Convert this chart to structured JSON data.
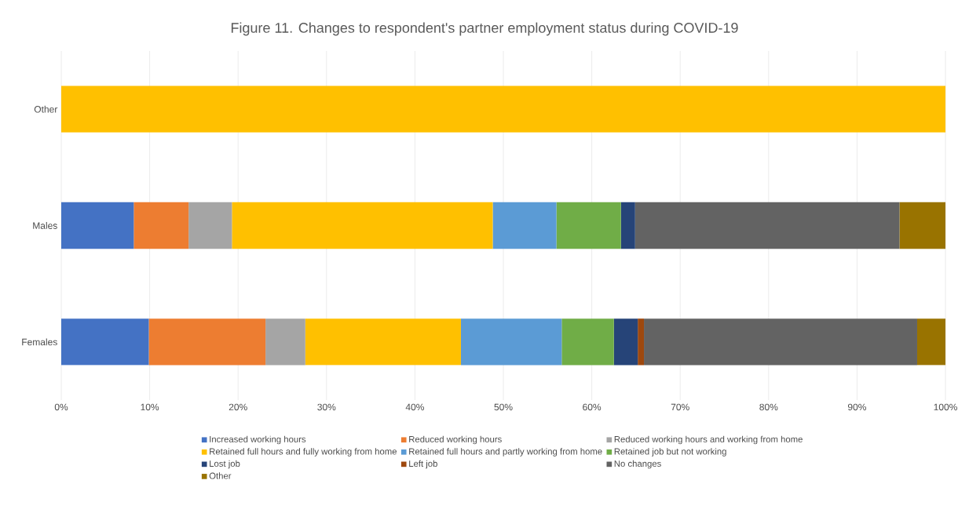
{
  "chart_data": {
    "type": "bar",
    "orientation": "horizontal",
    "stacked": true,
    "title": "Figure 11. Changes to respondent's partner employment status during COVID-19",
    "categories": [
      "Other",
      "Males",
      "Females"
    ],
    "series": [
      {
        "name": "Increased working hours",
        "color": "#4472c4",
        "values": [
          0,
          8.2,
          9.9
        ]
      },
      {
        "name": "Reduced working hours",
        "color": "#ed7d31",
        "values": [
          0,
          6.2,
          13.2
        ]
      },
      {
        "name": "Reduced working hours and working from home",
        "color": "#a5a5a5",
        "values": [
          0,
          4.9,
          4.5
        ]
      },
      {
        "name": "Retained full hours and fully working from home",
        "color": "#ffc000",
        "values": [
          100,
          29.5,
          17.6
        ]
      },
      {
        "name": "Retained full hours and partly working from home",
        "color": "#5b9bd5",
        "values": [
          0,
          7.2,
          11.4
        ]
      },
      {
        "name": "Retained job but not working",
        "color": "#70ad47",
        "values": [
          0,
          7.3,
          5.9
        ]
      },
      {
        "name": "Lost job",
        "color": "#264478",
        "values": [
          0,
          1.6,
          2.7
        ]
      },
      {
        "name": "Left job",
        "color": "#9e480e",
        "values": [
          0,
          0,
          0.7
        ]
      },
      {
        "name": "No changes",
        "color": "#636363",
        "values": [
          0,
          29.9,
          30.9
        ]
      },
      {
        "name": "Other",
        "color": "#997300",
        "values": [
          0,
          5.2,
          3.2
        ]
      }
    ],
    "xlim": [
      0,
      100
    ],
    "xticks": [
      {
        "value": 0,
        "label": "0%"
      },
      {
        "value": 10,
        "label": "10%"
      },
      {
        "value": 20,
        "label": "20%"
      },
      {
        "value": 30,
        "label": "30%"
      },
      {
        "value": 40,
        "label": "40%"
      },
      {
        "value": 50,
        "label": "50%"
      },
      {
        "value": 60,
        "label": "60%"
      },
      {
        "value": 70,
        "label": "70%"
      },
      {
        "value": 80,
        "label": "80%"
      },
      {
        "value": 90,
        "label": "90%"
      },
      {
        "value": 100,
        "label": "100%"
      }
    ],
    "grid": "x",
    "legend": "bottom"
  }
}
